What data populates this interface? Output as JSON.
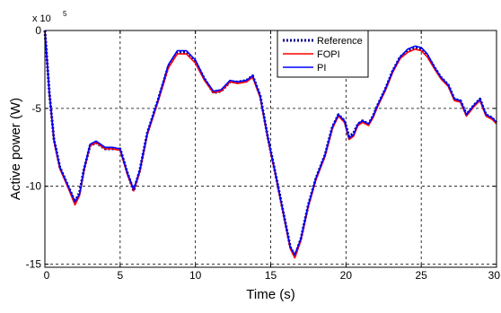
{
  "chart_data": {
    "type": "line",
    "title": "",
    "xlabel": "Time (s)",
    "ylabel": "Active power (W)",
    "y_exponent_base": "x 10",
    "y_exponent_power": "5",
    "xlim": [
      0,
      30
    ],
    "ylim": [
      -15.2,
      0
    ],
    "x_ticks": [
      0,
      5,
      10,
      15,
      20,
      25,
      30
    ],
    "x_tick_labels": [
      "0",
      "5",
      "10",
      "15",
      "20",
      "25",
      "30"
    ],
    "y_ticks": [
      0,
      -5,
      -10,
      -15
    ],
    "y_tick_labels": [
      "0",
      "-5",
      "-10",
      "-15"
    ],
    "grid": true,
    "legend_position": "top-right",
    "series": [
      {
        "name": "Reference",
        "color": "#00008b",
        "style": "dotted",
        "x": [
          0,
          0.3,
          0.6,
          1.0,
          1.5,
          2.0,
          2.3,
          2.6,
          3.0,
          3.4,
          4.0,
          4.5,
          5.0,
          5.5,
          5.9,
          6.3,
          6.8,
          7.5,
          8.2,
          8.8,
          9.4,
          10.0,
          10.6,
          11.2,
          11.7,
          12.3,
          12.8,
          13.4,
          13.8,
          14.3,
          14.8,
          15.3,
          15.8,
          16.3,
          16.6,
          17.0,
          17.5,
          18.0,
          18.6,
          19.1,
          19.5,
          19.9,
          20.2,
          20.5,
          20.8,
          21.1,
          21.5,
          21.8,
          22.1,
          22.6,
          23.1,
          23.6,
          24.1,
          24.6,
          25.0,
          25.4,
          25.9,
          26.3,
          26.8,
          27.2,
          27.6,
          28.0,
          28.5,
          28.9,
          29.3,
          29.7,
          30.0
        ],
        "values": [
          0.0,
          -4.0,
          -7.0,
          -8.8,
          -9.9,
          -11.0,
          -10.4,
          -8.9,
          -7.4,
          -7.2,
          -7.6,
          -7.6,
          -7.6,
          -9.2,
          -10.3,
          -9.0,
          -6.6,
          -4.5,
          -2.3,
          -1.4,
          -1.4,
          -2.0,
          -3.1,
          -4.0,
          -3.9,
          -3.3,
          -3.3,
          -3.2,
          -2.9,
          -4.2,
          -6.8,
          -9.1,
          -11.5,
          -13.9,
          -14.5,
          -13.4,
          -11.2,
          -9.5,
          -8.0,
          -6.2,
          -5.4,
          -5.8,
          -6.8,
          -6.6,
          -6.0,
          -5.8,
          -6.0,
          -5.5,
          -4.8,
          -3.8,
          -2.6,
          -1.7,
          -1.3,
          -1.1,
          -1.2,
          -1.6,
          -2.4,
          -3.0,
          -3.5,
          -4.4,
          -4.5,
          -5.4,
          -4.8,
          -4.4,
          -5.4,
          -5.6,
          -5.9
        ]
      },
      {
        "name": "FOPI",
        "color": "#ff0000",
        "style": "solid",
        "x": [
          0,
          0.3,
          0.6,
          1.0,
          1.5,
          2.0,
          2.3,
          2.6,
          3.0,
          3.4,
          4.0,
          4.5,
          5.0,
          5.5,
          5.9,
          6.3,
          6.8,
          7.5,
          8.2,
          8.8,
          9.4,
          10.0,
          10.6,
          11.2,
          11.7,
          12.3,
          12.8,
          13.4,
          13.8,
          14.3,
          14.8,
          15.3,
          15.8,
          16.3,
          16.6,
          17.0,
          17.5,
          18.0,
          18.6,
          19.1,
          19.5,
          19.9,
          20.2,
          20.5,
          20.8,
          21.1,
          21.5,
          21.8,
          22.1,
          22.6,
          23.1,
          23.6,
          24.1,
          24.6,
          25.0,
          25.4,
          25.9,
          26.3,
          26.8,
          27.2,
          27.6,
          28.0,
          28.5,
          28.9,
          29.3,
          29.7,
          30.0
        ],
        "values": [
          0.0,
          -4.1,
          -7.1,
          -8.9,
          -10.0,
          -11.2,
          -10.6,
          -9.0,
          -7.4,
          -7.2,
          -7.6,
          -7.6,
          -7.7,
          -9.3,
          -10.3,
          -9.1,
          -6.7,
          -4.6,
          -2.4,
          -1.5,
          -1.5,
          -2.1,
          -3.2,
          -4.0,
          -3.9,
          -3.3,
          -3.4,
          -3.3,
          -3.0,
          -4.3,
          -6.9,
          -9.2,
          -11.6,
          -14.0,
          -14.6,
          -13.5,
          -11.3,
          -9.6,
          -8.1,
          -6.3,
          -5.5,
          -5.9,
          -7.0,
          -6.8,
          -6.1,
          -5.9,
          -6.1,
          -5.6,
          -4.9,
          -3.9,
          -2.7,
          -1.8,
          -1.4,
          -1.2,
          -1.3,
          -1.7,
          -2.5,
          -3.1,
          -3.6,
          -4.5,
          -4.6,
          -5.5,
          -4.9,
          -4.5,
          -5.5,
          -5.7,
          -6.0
        ]
      },
      {
        "name": "PI",
        "color": "#0000ff",
        "style": "solid",
        "x": [
          0,
          0.3,
          0.6,
          1.0,
          1.5,
          2.0,
          2.3,
          2.6,
          3.0,
          3.4,
          4.0,
          4.5,
          5.0,
          5.5,
          5.9,
          6.3,
          6.8,
          7.5,
          8.2,
          8.8,
          9.4,
          10.0,
          10.6,
          11.2,
          11.7,
          12.3,
          12.8,
          13.4,
          13.8,
          14.3,
          14.8,
          15.3,
          15.8,
          16.3,
          16.6,
          17.0,
          17.5,
          18.0,
          18.6,
          19.1,
          19.5,
          19.9,
          20.2,
          20.5,
          20.8,
          21.1,
          21.5,
          21.8,
          22.1,
          22.6,
          23.1,
          23.6,
          24.1,
          24.6,
          25.0,
          25.4,
          25.9,
          26.3,
          26.8,
          27.2,
          27.6,
          28.0,
          28.5,
          28.9,
          29.3,
          29.7,
          30.0
        ],
        "values": [
          0.0,
          -4.0,
          -7.0,
          -8.8,
          -9.9,
          -11.0,
          -10.5,
          -8.9,
          -7.3,
          -7.1,
          -7.5,
          -7.5,
          -7.6,
          -9.2,
          -10.2,
          -9.0,
          -6.6,
          -4.5,
          -2.2,
          -1.3,
          -1.3,
          -1.9,
          -3.1,
          -3.9,
          -3.8,
          -3.2,
          -3.3,
          -3.2,
          -2.9,
          -4.2,
          -6.8,
          -9.1,
          -11.5,
          -13.9,
          -14.4,
          -13.4,
          -11.2,
          -9.5,
          -8.0,
          -6.2,
          -5.4,
          -5.8,
          -6.9,
          -6.7,
          -6.0,
          -5.8,
          -6.0,
          -5.5,
          -4.8,
          -3.8,
          -2.6,
          -1.7,
          -1.2,
          -1.0,
          -1.1,
          -1.5,
          -2.4,
          -3.0,
          -3.5,
          -4.4,
          -4.5,
          -5.4,
          -4.8,
          -4.4,
          -5.4,
          -5.6,
          -5.9
        ]
      }
    ]
  }
}
